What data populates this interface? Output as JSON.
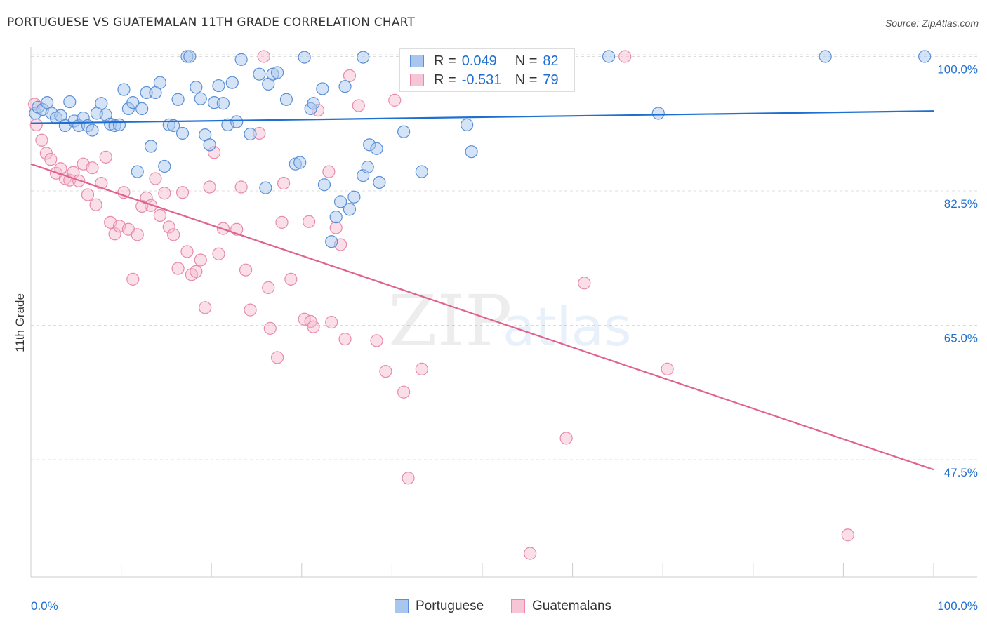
{
  "header": {
    "title": "PORTUGUESE VS GUATEMALAN 11TH GRADE CORRELATION CHART",
    "source": "Source: ZipAtlas.com"
  },
  "watermark": {
    "zip": "ZIP",
    "atlas": "atlas"
  },
  "legend_top": {
    "series1": {
      "r_label": "R =",
      "r_value": "0.049",
      "n_label": "N =",
      "n_value": "82"
    },
    "series2": {
      "r_label": "R =",
      "r_value": "-0.531",
      "n_label": "N =",
      "n_value": "79"
    }
  },
  "legend_bottom": {
    "series1": "Portuguese",
    "series2": "Guatemalans"
  },
  "colors": {
    "blue_fill": "#a9c7ee",
    "blue_stroke": "#5b8fd6",
    "blue_line": "#1f6fd0",
    "pink_fill": "#f7b9cd",
    "pink_stroke": "#e88aa8",
    "pink_line": "#e0628f",
    "tick_text": "#1f6fd0",
    "grid": "#dcdcdc"
  },
  "chart_data": {
    "type": "scatter",
    "title": "PORTUGUESE VS GUATEMALAN 11TH GRADE CORRELATION CHART",
    "ylabel": "11th Grade",
    "xlabel": "",
    "xlim": [
      0,
      100
    ],
    "ylim": [
      30,
      101.5
    ],
    "x_tick_labels": [
      "0.0%",
      "100.0%"
    ],
    "y_ticks": [
      47.5,
      65.0,
      82.5,
      100.0
    ],
    "y_tick_labels": [
      "47.5%",
      "65.0%",
      "82.5%",
      "100.0%"
    ],
    "grid": true,
    "legend": "top-center",
    "series": [
      {
        "name": "Portuguese",
        "color": "#5b8fd6",
        "trend": {
          "x": [
            0,
            100
          ],
          "y": [
            91.3,
            92.9
          ]
        },
        "points": [
          [
            0.5,
            92.6
          ],
          [
            0.8,
            93.4
          ],
          [
            1.3,
            93.1
          ],
          [
            1.8,
            94.0
          ],
          [
            2.3,
            92.6
          ],
          [
            2.8,
            92.0
          ],
          [
            3.3,
            92.3
          ],
          [
            3.8,
            91.0
          ],
          [
            4.3,
            94.1
          ],
          [
            4.8,
            91.6
          ],
          [
            5.3,
            91.0
          ],
          [
            5.8,
            92.0
          ],
          [
            6.3,
            91.0
          ],
          [
            6.8,
            90.4
          ],
          [
            7.3,
            92.6
          ],
          [
            7.8,
            93.9
          ],
          [
            8.3,
            92.4
          ],
          [
            8.8,
            91.2
          ],
          [
            9.3,
            91.0
          ],
          [
            9.8,
            91.1
          ],
          [
            10.3,
            95.7
          ],
          [
            10.8,
            93.2
          ],
          [
            11.3,
            94.0
          ],
          [
            11.8,
            85.0
          ],
          [
            12.3,
            93.2
          ],
          [
            12.8,
            95.3
          ],
          [
            13.3,
            88.3
          ],
          [
            13.8,
            95.3
          ],
          [
            14.3,
            96.6
          ],
          [
            14.8,
            85.7
          ],
          [
            15.3,
            91.1
          ],
          [
            15.8,
            91.0
          ],
          [
            16.3,
            94.4
          ],
          [
            16.8,
            90.0
          ],
          [
            17.3,
            100.0
          ],
          [
            17.6,
            100.0
          ],
          [
            18.3,
            96.0
          ],
          [
            18.8,
            94.5
          ],
          [
            19.3,
            89.8
          ],
          [
            19.8,
            88.5
          ],
          [
            20.3,
            94.0
          ],
          [
            20.8,
            96.2
          ],
          [
            21.3,
            93.9
          ],
          [
            21.8,
            91.1
          ],
          [
            22.3,
            96.6
          ],
          [
            22.8,
            91.5
          ],
          [
            23.3,
            99.6
          ],
          [
            24.3,
            89.9
          ],
          [
            25.3,
            97.7
          ],
          [
            26.0,
            82.9
          ],
          [
            26.3,
            96.4
          ],
          [
            26.8,
            97.7
          ],
          [
            27.3,
            97.9
          ],
          [
            28.3,
            94.4
          ],
          [
            29.3,
            86.0
          ],
          [
            29.8,
            86.2
          ],
          [
            30.3,
            99.9
          ],
          [
            31.0,
            93.2
          ],
          [
            31.3,
            93.9
          ],
          [
            32.3,
            95.8
          ],
          [
            32.5,
            83.3
          ],
          [
            33.3,
            75.9
          ],
          [
            33.8,
            79.1
          ],
          [
            34.3,
            81.1
          ],
          [
            34.8,
            96.1
          ],
          [
            35.3,
            80.1
          ],
          [
            35.8,
            81.7
          ],
          [
            36.8,
            84.5
          ],
          [
            36.8,
            99.9
          ],
          [
            37.3,
            85.6
          ],
          [
            37.5,
            88.5
          ],
          [
            38.3,
            88.0
          ],
          [
            38.6,
            83.6
          ],
          [
            41.3,
            90.2
          ],
          [
            43.3,
            85.0
          ],
          [
            45.8,
            98.7
          ],
          [
            48.3,
            91.1
          ],
          [
            48.8,
            87.6
          ],
          [
            69.5,
            92.6
          ],
          [
            64.0,
            100.0
          ],
          [
            88.0,
            100.0
          ],
          [
            99.0,
            100.0
          ]
        ]
      },
      {
        "name": "Guatemalans",
        "color": "#e88aa8",
        "trend": {
          "x": [
            0,
            100
          ],
          "y": [
            86.0,
            46.2
          ]
        },
        "points": [
          [
            0.4,
            93.8
          ],
          [
            0.6,
            91.1
          ],
          [
            1.2,
            89.1
          ],
          [
            1.7,
            87.4
          ],
          [
            2.2,
            86.6
          ],
          [
            2.8,
            84.8
          ],
          [
            3.3,
            85.4
          ],
          [
            3.8,
            84.1
          ],
          [
            4.3,
            83.9
          ],
          [
            4.7,
            84.9
          ],
          [
            5.3,
            83.8
          ],
          [
            5.8,
            86.0
          ],
          [
            6.3,
            82.0
          ],
          [
            6.8,
            85.5
          ],
          [
            7.2,
            80.7
          ],
          [
            7.8,
            83.5
          ],
          [
            8.3,
            86.9
          ],
          [
            8.8,
            78.4
          ],
          [
            9.3,
            76.9
          ],
          [
            9.8,
            77.9
          ],
          [
            10.3,
            82.3
          ],
          [
            10.8,
            77.5
          ],
          [
            11.3,
            71.0
          ],
          [
            11.8,
            76.8
          ],
          [
            12.3,
            80.5
          ],
          [
            12.8,
            81.6
          ],
          [
            13.3,
            80.6
          ],
          [
            13.8,
            84.1
          ],
          [
            14.3,
            79.3
          ],
          [
            14.8,
            82.2
          ],
          [
            15.3,
            77.8
          ],
          [
            15.8,
            76.8
          ],
          [
            16.3,
            72.4
          ],
          [
            16.8,
            82.3
          ],
          [
            17.3,
            74.6
          ],
          [
            17.8,
            71.6
          ],
          [
            18.3,
            72.0
          ],
          [
            18.8,
            73.5
          ],
          [
            19.3,
            67.3
          ],
          [
            19.8,
            83.0
          ],
          [
            20.3,
            87.5
          ],
          [
            20.8,
            74.3
          ],
          [
            21.3,
            77.6
          ],
          [
            22.8,
            77.5
          ],
          [
            23.3,
            83.0
          ],
          [
            23.8,
            72.2
          ],
          [
            24.3,
            67.0
          ],
          [
            25.3,
            90.0
          ],
          [
            25.8,
            100.0
          ],
          [
            26.3,
            69.9
          ],
          [
            26.5,
            64.6
          ],
          [
            27.3,
            60.8
          ],
          [
            27.8,
            78.4
          ],
          [
            28.0,
            83.5
          ],
          [
            28.8,
            71.0
          ],
          [
            30.3,
            65.8
          ],
          [
            30.8,
            78.5
          ],
          [
            31.0,
            65.5
          ],
          [
            31.3,
            64.8
          ],
          [
            31.8,
            93.0
          ],
          [
            33.0,
            85.0
          ],
          [
            33.3,
            65.4
          ],
          [
            33.8,
            77.7
          ],
          [
            34.3,
            75.5
          ],
          [
            34.8,
            63.2
          ],
          [
            35.3,
            97.5
          ],
          [
            36.3,
            93.6
          ],
          [
            38.3,
            63.0
          ],
          [
            39.3,
            59.0
          ],
          [
            40.3,
            94.3
          ],
          [
            41.3,
            56.3
          ],
          [
            41.8,
            45.1
          ],
          [
            43.3,
            59.3
          ],
          [
            55.3,
            35.3
          ],
          [
            59.3,
            50.3
          ],
          [
            61.3,
            70.5
          ],
          [
            65.8,
            100.0
          ],
          [
            70.5,
            59.3
          ],
          [
            90.5,
            37.7
          ]
        ]
      }
    ]
  }
}
